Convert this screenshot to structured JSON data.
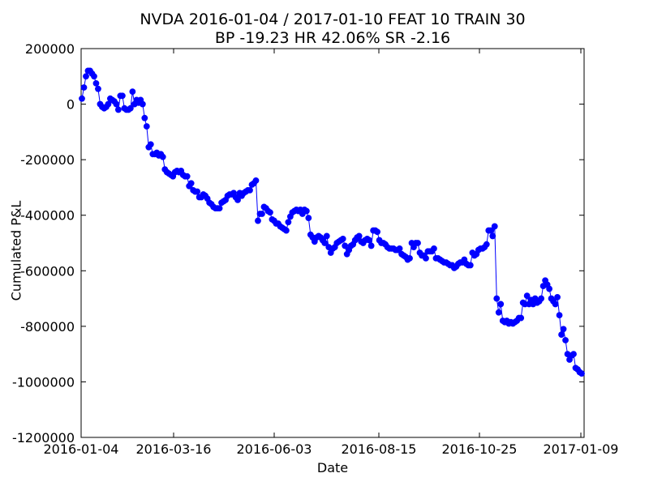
{
  "chart_data": {
    "type": "line",
    "title_line1": "NVDA 2016-01-04 / 2017-01-10 FEAT 10 TRAIN 30",
    "title_line2": "BP -19.23 HR 42.06%  SR -2.16",
    "xlabel": "Date",
    "ylabel": "Cumulated P&L",
    "x_ticks": [
      "2016-01-04",
      "2016-03-16",
      "2016-06-03",
      "2016-08-15",
      "2016-10-25",
      "2017-01-09"
    ],
    "y_ticks": [
      200000,
      0,
      -200000,
      -400000,
      -600000,
      -800000,
      -1000000,
      -1200000
    ],
    "ylim": [
      -1200000,
      200000
    ],
    "grid": false,
    "marker": "circle",
    "color": "#0000ff",
    "series": [
      {
        "values": [
          20000,
          60000,
          100000,
          120000,
          120000,
          110000,
          100000,
          75000,
          55000,
          0,
          -10000,
          -15000,
          -10000,
          0,
          20000,
          15000,
          10000,
          0,
          -20000,
          30000,
          30000,
          -15000,
          -20000,
          -20000,
          -15000,
          45000,
          0,
          15000,
          5000,
          15000,
          0,
          -50000,
          -80000,
          -155000,
          -145000,
          -180000,
          -180000,
          -175000,
          -185000,
          -180000,
          -190000,
          -235000,
          -245000,
          -250000,
          -255000,
          -260000,
          -245000,
          -240000,
          -245000,
          -240000,
          -255000,
          -260000,
          -260000,
          -295000,
          -285000,
          -310000,
          -315000,
          -315000,
          -335000,
          -335000,
          -325000,
          -330000,
          -340000,
          -355000,
          -360000,
          -370000,
          -375000,
          -375000,
          -375000,
          -355000,
          -350000,
          -345000,
          -330000,
          -325000,
          -325000,
          -320000,
          -335000,
          -345000,
          -320000,
          -330000,
          -320000,
          -315000,
          -310000,
          -310000,
          -290000,
          -285000,
          -275000,
          -420000,
          -395000,
          -395000,
          -370000,
          -375000,
          -385000,
          -390000,
          -415000,
          -420000,
          -430000,
          -430000,
          -440000,
          -445000,
          -450000,
          -455000,
          -425000,
          -405000,
          -390000,
          -385000,
          -380000,
          -385000,
          -380000,
          -395000,
          -380000,
          -385000,
          -410000,
          -470000,
          -480000,
          -495000,
          -480000,
          -475000,
          -480000,
          -490000,
          -500000,
          -475000,
          -515000,
          -535000,
          -520000,
          -515000,
          -500000,
          -495000,
          -490000,
          -485000,
          -510000,
          -540000,
          -525000,
          -510000,
          -505000,
          -490000,
          -480000,
          -475000,
          -495000,
          -500000,
          -490000,
          -485000,
          -490000,
          -510000,
          -455000,
          -455000,
          -460000,
          -490000,
          -500000,
          -500000,
          -505000,
          -515000,
          -520000,
          -520000,
          -520000,
          -525000,
          -525000,
          -520000,
          -540000,
          -545000,
          -550000,
          -560000,
          -555000,
          -500000,
          -515000,
          -500000,
          -500000,
          -535000,
          -545000,
          -545000,
          -555000,
          -530000,
          -530000,
          -530000,
          -520000,
          -555000,
          -555000,
          -560000,
          -565000,
          -570000,
          -570000,
          -575000,
          -580000,
          -580000,
          -590000,
          -585000,
          -575000,
          -570000,
          -570000,
          -560000,
          -575000,
          -580000,
          -580000,
          -535000,
          -545000,
          -540000,
          -525000,
          -520000,
          -520000,
          -515000,
          -505000,
          -455000,
          -455000,
          -475000,
          -440000,
          -700000,
          -750000,
          -720000,
          -780000,
          -785000,
          -780000,
          -790000,
          -785000,
          -790000,
          -785000,
          -780000,
          -770000,
          -770000,
          -715000,
          -720000,
          -690000,
          -720000,
          -705000,
          -720000,
          -700000,
          -715000,
          -710000,
          -700000,
          -655000,
          -635000,
          -650000,
          -665000,
          -700000,
          -710000,
          -720000,
          -695000,
          -760000,
          -830000,
          -810000,
          -850000,
          -900000,
          -920000,
          -905000,
          -900000,
          -950000,
          -955000,
          -965000,
          -970000
        ]
      }
    ]
  }
}
